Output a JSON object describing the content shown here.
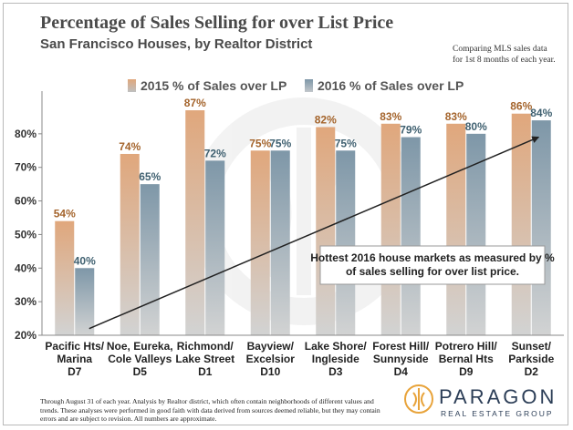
{
  "chart_data": {
    "type": "bar",
    "title": "Percentage  of Sales Selling for over List Price",
    "subtitle": "San Francisco Houses, by Realtor District",
    "note_lines": [
      "Comparing MLS sales data",
      "for 1st 8 months of each year."
    ],
    "categories": [
      [
        "Pacific Hts/",
        "Marina",
        "D7"
      ],
      [
        "Noe, Eureka,",
        "Cole Valleys",
        "D5"
      ],
      [
        "Richmond/",
        "Lake Street",
        "D1"
      ],
      [
        "Bayview/",
        "Excelsior",
        "D10"
      ],
      [
        "Lake Shore/",
        "Ingleside",
        "D3"
      ],
      [
        "Forest Hill/",
        "Sunnyside",
        "D4"
      ],
      [
        "Potrero Hill/",
        "Bernal Hts",
        "D9"
      ],
      [
        "Sunset/",
        "Parkside",
        "D2"
      ]
    ],
    "series": [
      {
        "name": "2015 % of Sales over LP",
        "values": [
          54,
          74,
          87,
          75,
          82,
          83,
          83,
          86
        ],
        "labels": [
          "54%",
          "74%",
          "87%",
          "75%",
          "82%",
          "83%",
          "83%",
          "86%"
        ],
        "color": "#e0a77c",
        "label_color": "#a4642c"
      },
      {
        "name": "2016 % of Sales over LP",
        "values": [
          40,
          65,
          72,
          75,
          75,
          79,
          80,
          84
        ],
        "labels": [
          "40%",
          "65%",
          "72%",
          "75%",
          "75%",
          "79%",
          "80%",
          "84%"
        ],
        "color": "#7e97a8",
        "label_color": "#3f6070"
      }
    ],
    "ylim": [
      20,
      90
    ],
    "yticks": [
      20,
      30,
      40,
      50,
      60,
      70,
      80
    ],
    "ytick_labels": [
      "20%",
      "30%",
      "40%",
      "50%",
      "60%",
      "70%",
      "80%"
    ],
    "legend_position": "top-center",
    "grid": false,
    "annotation": {
      "lines": [
        "Hottest 2016 house markets as measured by %",
        "of sales selling for over list price."
      ],
      "arrow_from": {
        "category": 0,
        "y": 22
      },
      "arrow_to": {
        "category": 7,
        "y": 79
      }
    }
  },
  "footer": "Through August 31 of each year. Analysis by Realtor district, which often contain neighborhoods of different values and trends. These analyses were performed in good faith with data derived from sources deemed reliable, but they may contain errors and are subject to revision. All numbers are approximate.",
  "logo": {
    "name": "PARAGON",
    "tagline": "REAL ESTATE GROUP",
    "color": "#2c3e57",
    "accent": "#e8a33a"
  }
}
